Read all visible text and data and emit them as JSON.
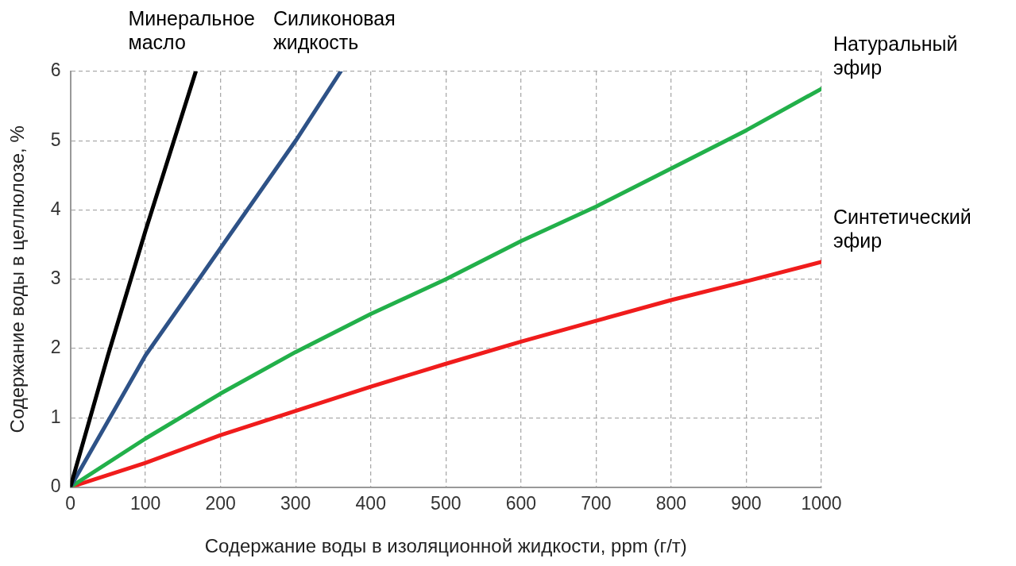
{
  "chart_data": {
    "type": "line",
    "xlabel": "Содержание воды в изоляционной жидкости, ppm (г/т)",
    "ylabel": "Содержание воды в целлюлозе, %",
    "xlim": [
      0,
      1000
    ],
    "xticks": [
      0,
      100,
      200,
      300,
      400,
      500,
      600,
      700,
      800,
      900,
      1000
    ],
    "ylim": [
      0,
      6
    ],
    "yticks": [
      0,
      1,
      2,
      3,
      4,
      5,
      6
    ],
    "grid": true,
    "legend": false,
    "marker": "none",
    "line_style": "solid",
    "series": [
      {
        "name": "Минеральное масло",
        "color": "#000000",
        "x": [
          0,
          50,
          100,
          167
        ],
        "values": [
          0,
          1.9,
          3.7,
          6
        ]
      },
      {
        "name": "Силиконовая жидкость",
        "color": "#2e5287",
        "x": [
          0,
          100,
          200,
          300,
          360
        ],
        "values": [
          0,
          1.9,
          3.45,
          5,
          6
        ]
      },
      {
        "name": "Натуральный эфир",
        "color": "#22b04a",
        "x": [
          0,
          100,
          200,
          300,
          400,
          500,
          600,
          700,
          800,
          900,
          1000
        ],
        "values": [
          0,
          0.7,
          1.35,
          1.95,
          2.5,
          3.0,
          3.55,
          4.05,
          4.6,
          5.15,
          5.75
        ]
      },
      {
        "name": "Синтетический эфир",
        "color": "#f01c1c",
        "x": [
          0,
          100,
          200,
          300,
          400,
          500,
          600,
          700,
          800,
          900,
          1000
        ],
        "values": [
          0,
          0.35,
          0.75,
          1.1,
          1.45,
          1.78,
          2.1,
          2.4,
          2.7,
          2.97,
          3.25
        ]
      }
    ]
  }
}
